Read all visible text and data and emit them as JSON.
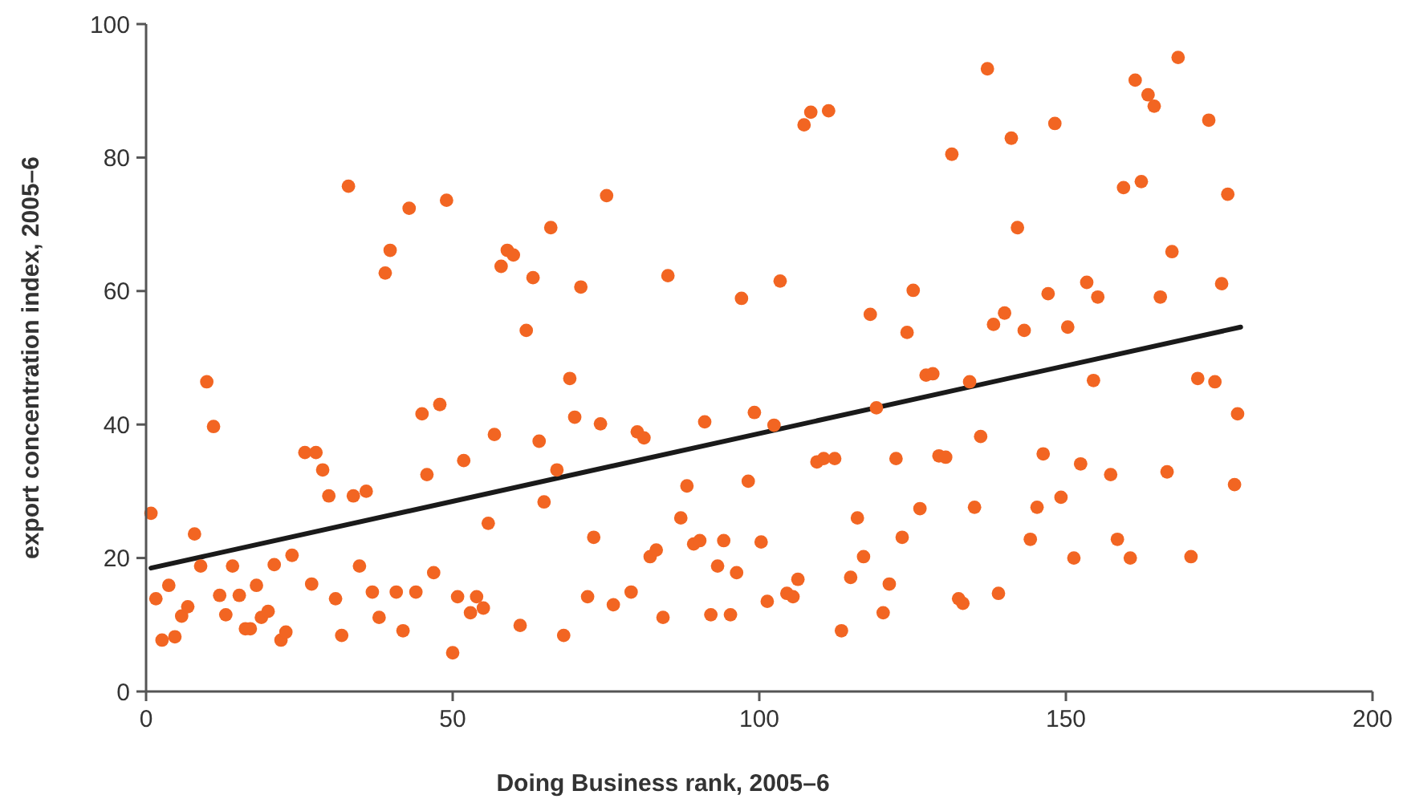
{
  "chart_data": {
    "type": "scatter",
    "xlabel": "Doing Business rank, 2005–6",
    "ylabel": "export concentration index, 2005–6",
    "xlim": [
      0,
      200
    ],
    "ylim": [
      0,
      100
    ],
    "xticks": [
      0,
      50,
      100,
      150,
      200
    ],
    "yticks": [
      0,
      20,
      40,
      60,
      80,
      100
    ],
    "marker": "circle",
    "series": [
      {
        "color": "#f26522",
        "x": [
          0.8,
          1.6,
          2.6,
          3.7,
          4.7,
          5.8,
          6.8,
          7.9,
          8.9,
          9.9,
          11,
          12,
          13,
          14.1,
          15.2,
          16.2,
          17,
          18,
          18.8,
          19.9,
          20.9,
          22,
          22.8,
          23.8,
          25.9,
          27,
          27.7,
          28.8,
          29.8,
          30.9,
          31.9,
          33,
          33.8,
          34.8,
          35.9,
          36.9,
          38,
          39,
          39.8,
          40.8,
          41.9,
          42.9,
          44,
          45,
          45.8,
          46.9,
          47.9,
          49,
          50,
          50.8,
          51.8,
          52.9,
          53.9,
          55,
          55.8,
          56.8,
          57.9,
          58.9,
          59.9,
          61,
          62,
          63.1,
          64.1,
          64.9,
          66,
          67,
          68.1,
          69.1,
          69.9,
          70.9,
          72,
          73,
          74.1,
          75.1,
          76.2,
          79.1,
          80.1,
          81.2,
          82.2,
          83.2,
          84.3,
          85.1,
          87.2,
          88.2,
          89.3,
          90.3,
          91.1,
          92.1,
          93.2,
          94.2,
          95.3,
          96.3,
          97.1,
          98.2,
          99.2,
          100.3,
          101.3,
          102.4,
          103.4,
          104.5,
          105.5,
          106.3,
          107.3,
          108.4,
          109.4,
          110.5,
          111.3,
          112.3,
          113.4,
          114.9,
          116,
          117,
          118.1,
          119.1,
          120.2,
          121.2,
          122.3,
          123.3,
          124.1,
          125.1,
          126.2,
          127.2,
          128.3,
          129.3,
          130.4,
          131.4,
          132.5,
          133.2,
          134.3,
          135.1,
          136.1,
          137.2,
          138.2,
          139,
          140,
          141.1,
          142.1,
          143.2,
          144.2,
          145.3,
          146.3,
          147.1,
          148.2,
          149.2,
          150.3,
          151.3,
          152.4,
          153.4,
          154.5,
          155.2,
          157.3,
          158.4,
          159.4,
          160.5,
          161.3,
          162.3,
          163.4,
          164.4,
          165.4,
          166.5,
          167.3,
          168.3,
          170.4,
          171.5,
          173.3,
          174.3,
          175.4,
          176.4,
          177.5,
          178
        ],
        "values": [
          26.7,
          13.9,
          7.7,
          15.9,
          8.2,
          11.3,
          12.7,
          23.6,
          18.8,
          46.4,
          39.7,
          14.4,
          11.5,
          18.8,
          14.4,
          9.4,
          9.4,
          15.9,
          11.1,
          12,
          19,
          7.7,
          8.9,
          20.4,
          35.8,
          16.1,
          35.8,
          33.2,
          29.3,
          13.9,
          8.4,
          75.7,
          29.3,
          18.8,
          30,
          14.9,
          11.1,
          62.7,
          66.1,
          14.9,
          9.1,
          72.4,
          14.9,
          41.6,
          32.5,
          17.8,
          43,
          73.6,
          5.8,
          14.2,
          34.6,
          11.8,
          14.2,
          12.5,
          25.2,
          38.5,
          63.7,
          66.1,
          65.4,
          9.9,
          54.1,
          62,
          37.5,
          28.4,
          69.5,
          33.2,
          8.4,
          46.9,
          41.1,
          60.6,
          14.2,
          23.1,
          40.1,
          74.3,
          13,
          14.9,
          38.9,
          38,
          20.2,
          21.2,
          11.1,
          62.3,
          26,
          30.8,
          22.1,
          22.6,
          40.4,
          11.5,
          18.8,
          22.6,
          11.5,
          17.8,
          58.9,
          31.5,
          41.8,
          22.4,
          13.5,
          39.9,
          61.5,
          14.7,
          14.2,
          16.8,
          84.9,
          86.8,
          34.4,
          34.9,
          87,
          34.9,
          9.1,
          17.1,
          26,
          20.2,
          56.5,
          42.5,
          11.8,
          16.1,
          34.9,
          23.1,
          53.8,
          60.1,
          27.4,
          47.4,
          47.6,
          35.3,
          35.1,
          80.5,
          13.9,
          13.2,
          46.4,
          27.6,
          38.2,
          93.3,
          55,
          14.7,
          56.7,
          82.9,
          69.5,
          54.1,
          22.8,
          27.6,
          35.6,
          59.6,
          85.1,
          29.1,
          54.6,
          20,
          34.1,
          61.3,
          46.6,
          59.1,
          32.5,
          22.8,
          75.5,
          20,
          91.6,
          76.4,
          89.4,
          87.7,
          59.1,
          32.9,
          65.9,
          95,
          20.2,
          46.9,
          85.6,
          46.4,
          61.1,
          74.5,
          31,
          41.6
        ]
      },
      {
        "type": "line",
        "color": "#1a1a1a",
        "marker": "none",
        "x": [
          0.8,
          178.5
        ],
        "values": [
          18.5,
          54.6
        ]
      }
    ]
  }
}
